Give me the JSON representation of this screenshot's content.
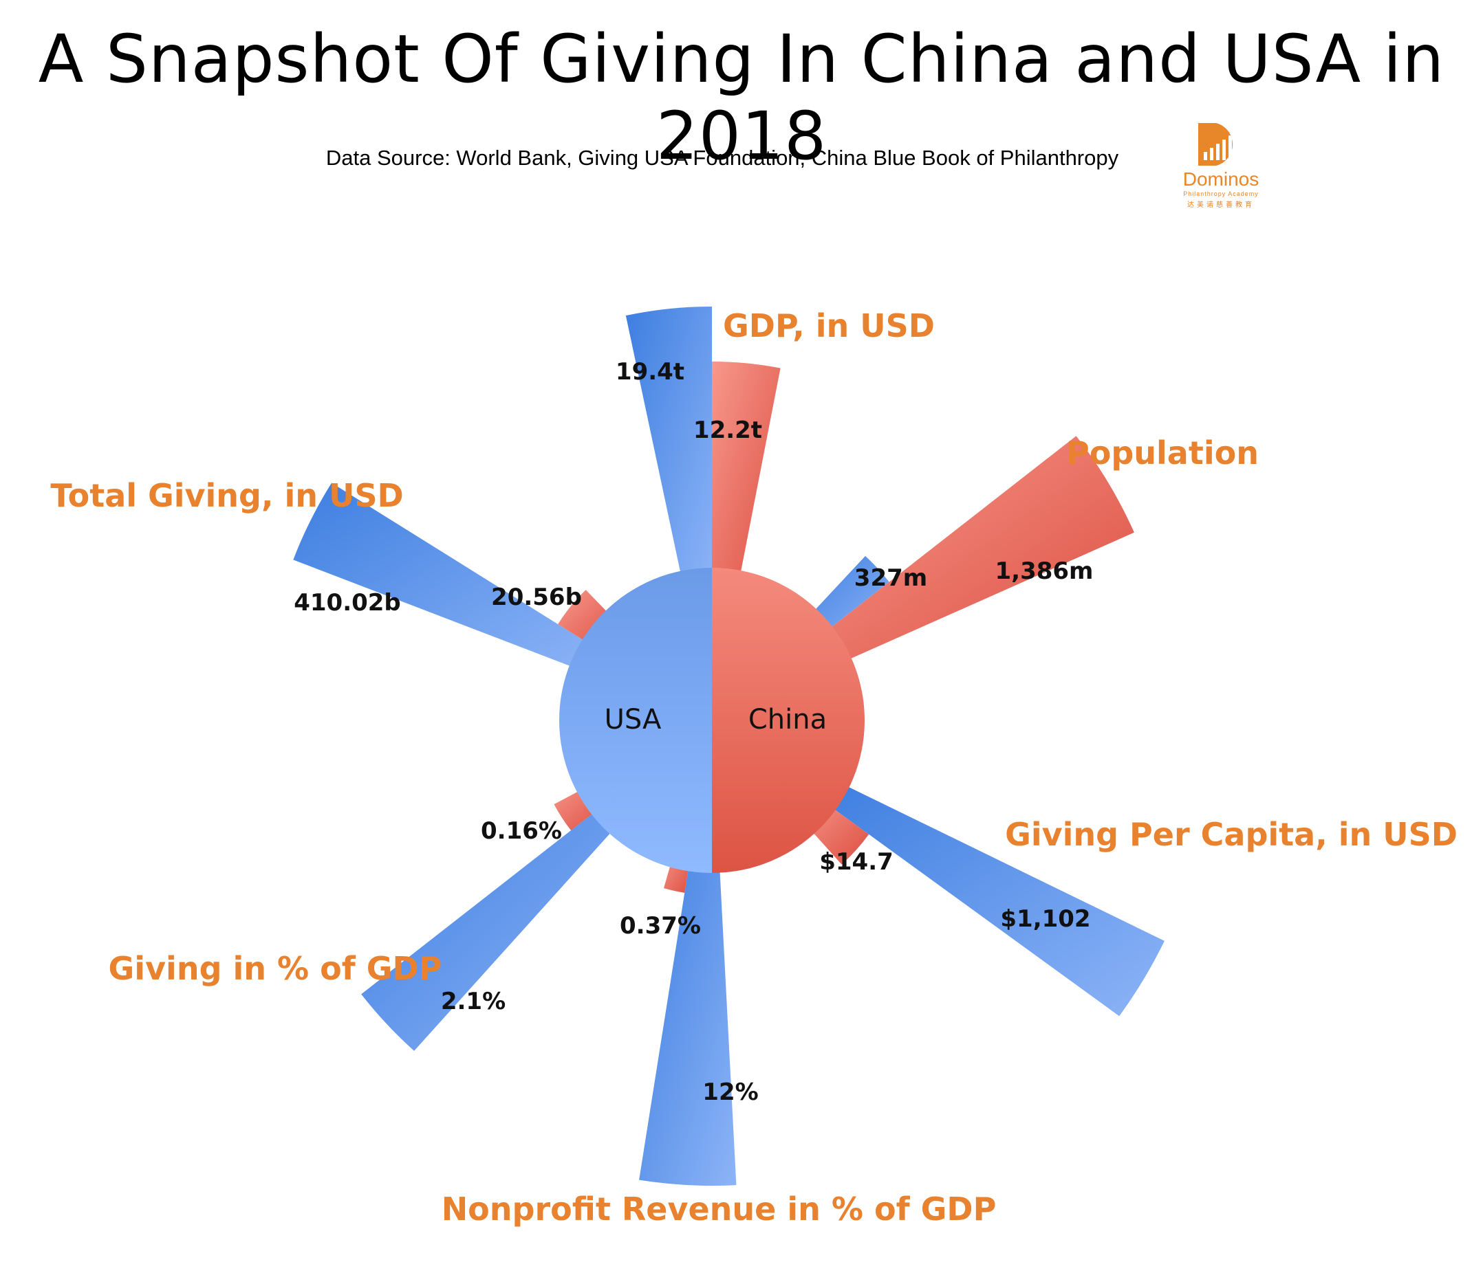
{
  "title": "A  Snapshot Of Giving In China and USA in 2018",
  "subtitle": "Data Source: World Bank, Giving USA Foundation, China Blue Book of Philanthropy",
  "logo": {
    "icon": "dominos-bar-chart-logo",
    "name": "Dominos",
    "tagline": "Philanthropy Academy",
    "tagline_cn": "达美诺慈善教育"
  },
  "colors": {
    "usa": "#6f9cf0",
    "usa_dark": "#3d7ee0",
    "china": "#f28679",
    "china_dark": "#e05a4b",
    "category_label": "#e8822e",
    "value_label": "#111111"
  },
  "center": {
    "usa_label": "USA",
    "china_label": "China"
  },
  "chart_data": {
    "type": "nightingale-rose",
    "series": [
      {
        "name": "USA",
        "color": "#6f9cf0"
      },
      {
        "name": "China",
        "color": "#f28679"
      }
    ],
    "categories": [
      {
        "name": "GDP, in USD",
        "usa": 19.4,
        "usa_label": "19.4t",
        "china": 12.2,
        "china_label": "12.2t"
      },
      {
        "name": "Population",
        "usa": 327,
        "usa_label": "327m",
        "china": 1386,
        "china_label": "1,386m"
      },
      {
        "name": "Giving Per Capita, in USD",
        "usa": 1102,
        "usa_label": "$1,102",
        "china": 14.7,
        "china_label": "$14.7"
      },
      {
        "name": "Nonprofit Revenue in % of GDP",
        "usa": 12,
        "usa_label": "12%",
        "china": 0.37,
        "china_label": "0.37%"
      },
      {
        "name": "Giving in % of GDP",
        "usa": 2.1,
        "usa_label": "2.1%",
        "china": 0.16,
        "china_label": "0.16%"
      },
      {
        "name": "Total Giving, in USD",
        "usa": 410.02,
        "usa_label": "410.02b",
        "china": 20.56,
        "china_label": "20.56b"
      }
    ]
  }
}
